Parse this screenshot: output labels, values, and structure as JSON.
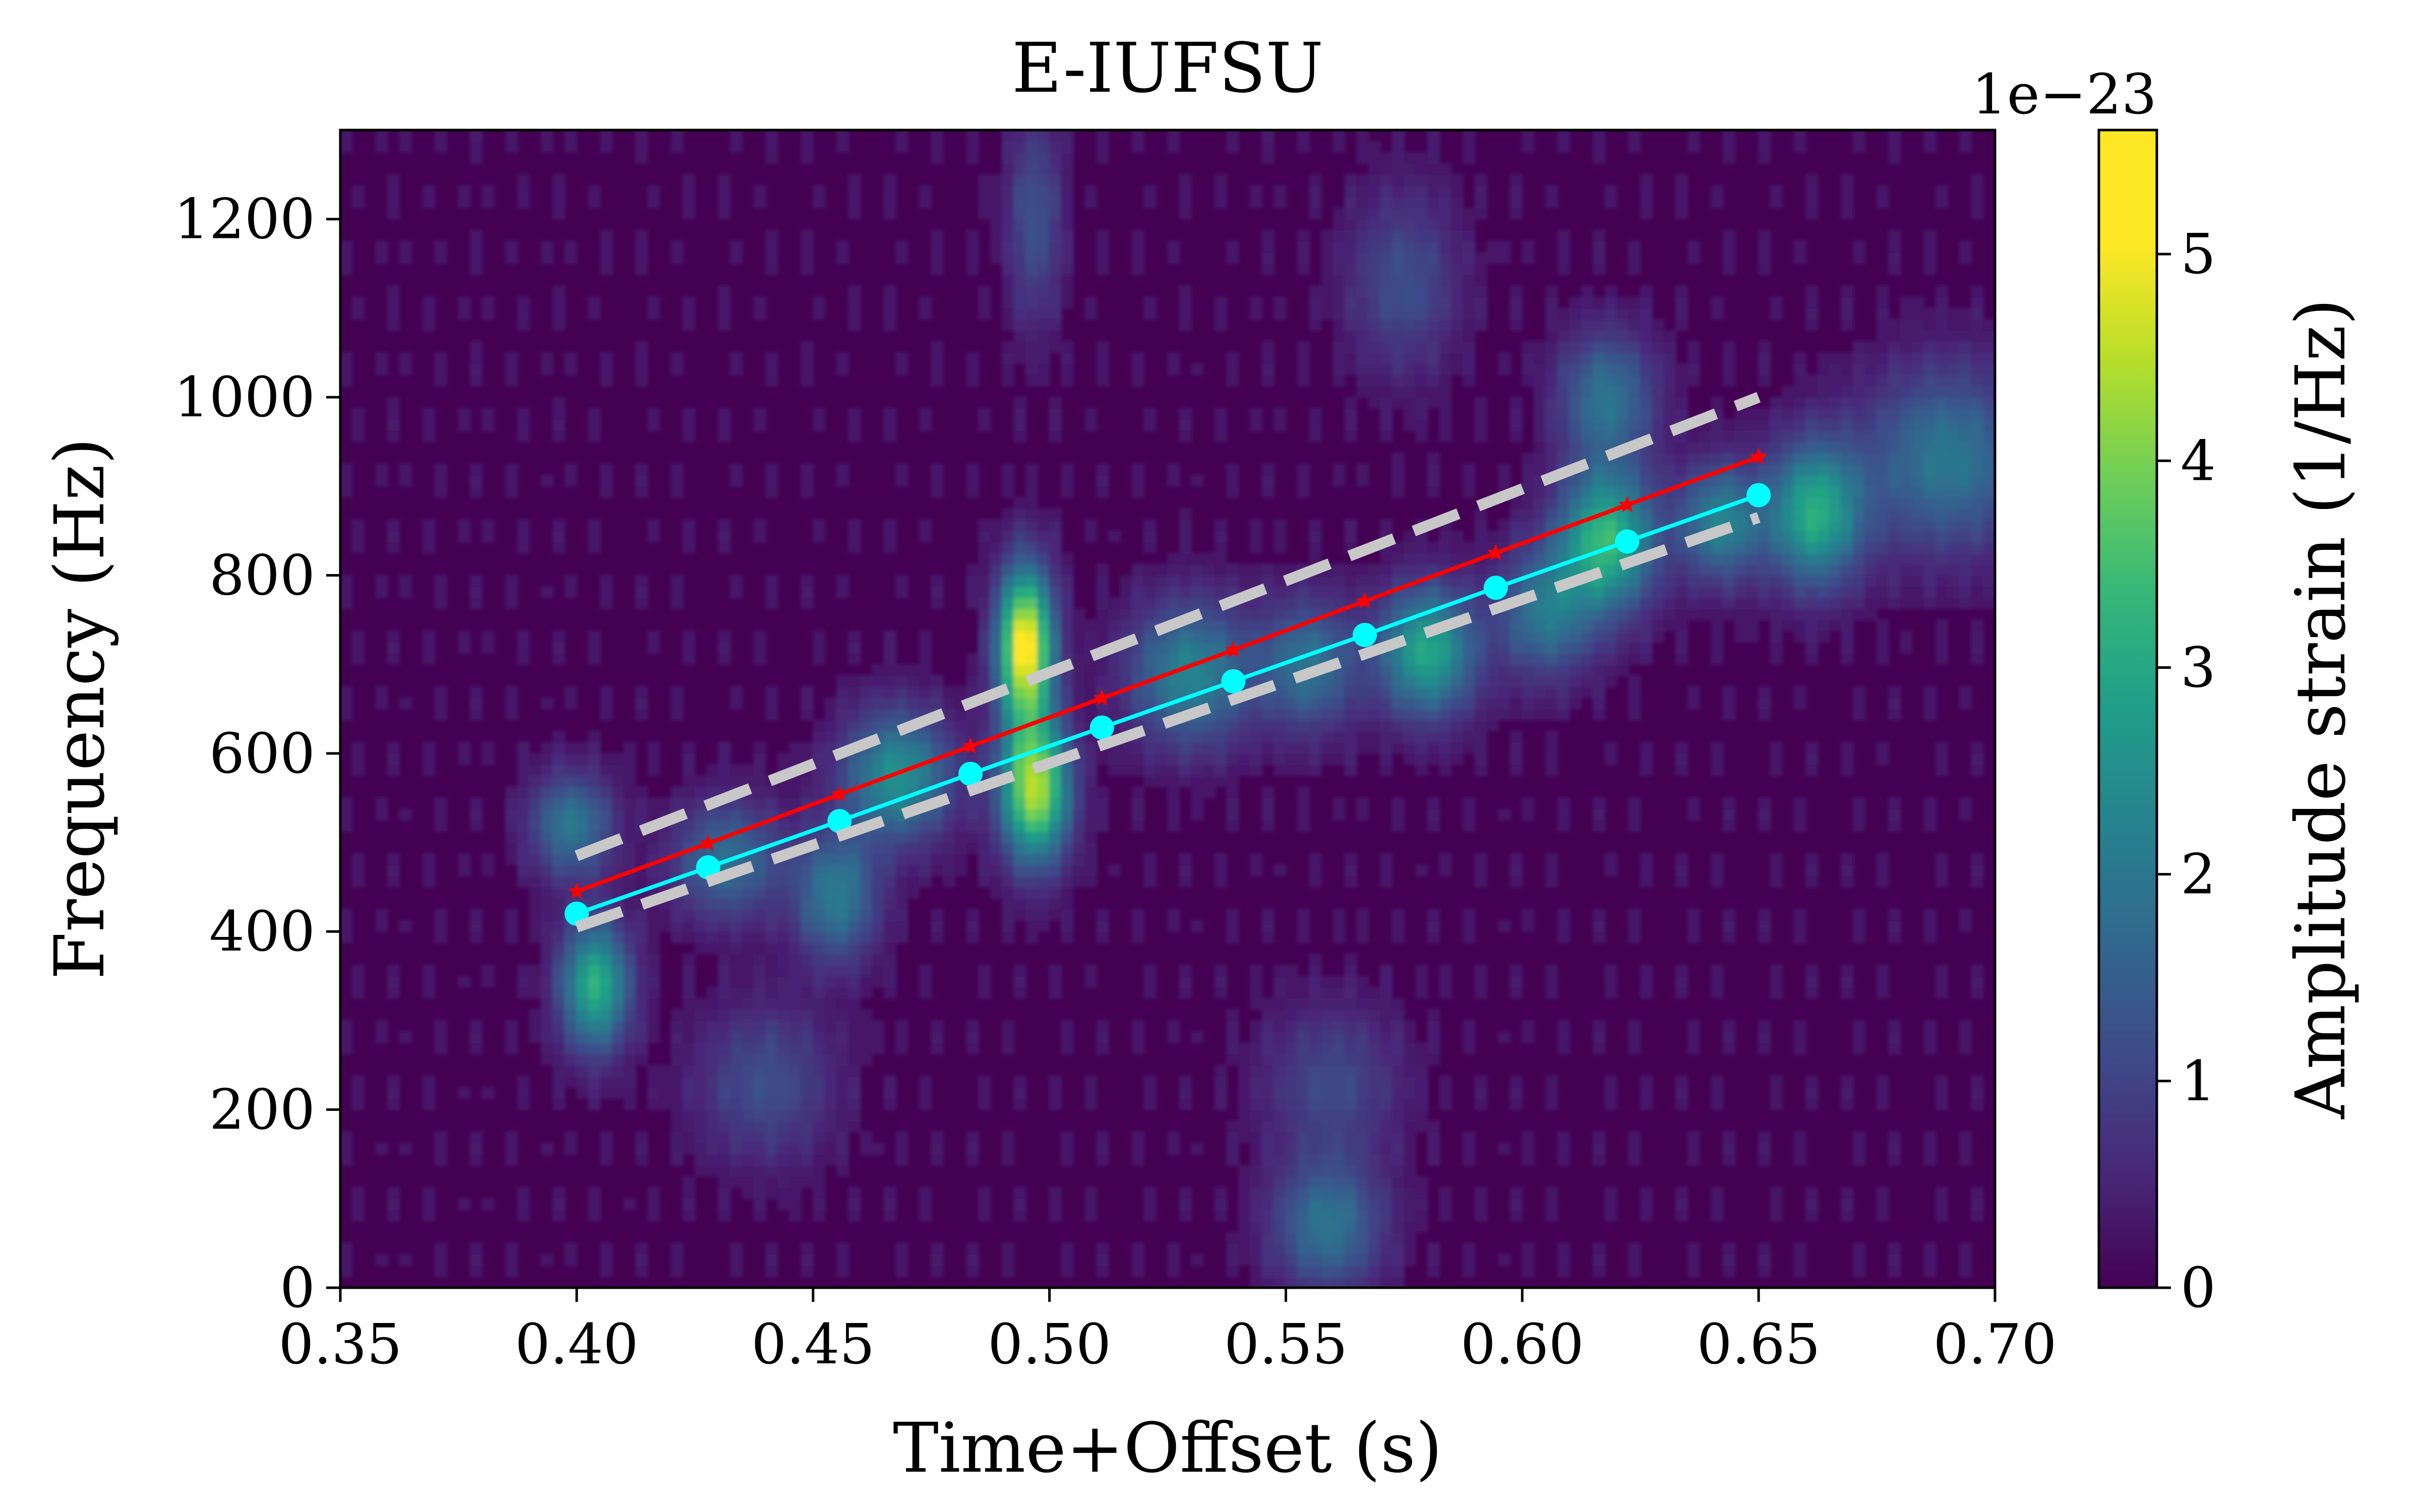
{
  "chart_data": {
    "type": "heatmap",
    "title": "E-IUFSU",
    "xlabel": "Time+Offset (s)",
    "ylabel": "Frequency (Hz)",
    "xlim": [
      0.35,
      0.7
    ],
    "ylim": [
      0,
      1300
    ],
    "xticks": [
      "0.35",
      "0.40",
      "0.45",
      "0.50",
      "0.55",
      "0.60",
      "0.65",
      "0.70"
    ],
    "yticks": [
      "0",
      "200",
      "400",
      "600",
      "800",
      "1000",
      "1200"
    ],
    "colormap": "viridis",
    "colorbar": {
      "label": "Amplitude strain (1/Hz)",
      "exponent_label": "1e−23",
      "range": [
        0,
        5.6
      ],
      "ticks": [
        "0",
        "1",
        "2",
        "3",
        "4",
        "5"
      ]
    },
    "hotspots": [
      {
        "x": 0.495,
        "y": 720,
        "amp": 5.6,
        "sx": 0.004,
        "sy": 60
      },
      {
        "x": 0.497,
        "y": 560,
        "amp": 4.7,
        "sx": 0.005,
        "sy": 55
      },
      {
        "x": 0.404,
        "y": 340,
        "amp": 3.3,
        "sx": 0.005,
        "sy": 50
      },
      {
        "x": 0.399,
        "y": 520,
        "amp": 2.0,
        "sx": 0.006,
        "sy": 40
      },
      {
        "x": 0.432,
        "y": 480,
        "amp": 1.8,
        "sx": 0.008,
        "sy": 45
      },
      {
        "x": 0.468,
        "y": 575,
        "amp": 2.6,
        "sx": 0.008,
        "sy": 50
      },
      {
        "x": 0.455,
        "y": 440,
        "amp": 2.1,
        "sx": 0.006,
        "sy": 50
      },
      {
        "x": 0.53,
        "y": 690,
        "amp": 2.3,
        "sx": 0.009,
        "sy": 55
      },
      {
        "x": 0.555,
        "y": 700,
        "amp": 1.9,
        "sx": 0.007,
        "sy": 50
      },
      {
        "x": 0.58,
        "y": 715,
        "amp": 3.1,
        "sx": 0.007,
        "sy": 50
      },
      {
        "x": 0.618,
        "y": 840,
        "amp": 3.5,
        "sx": 0.007,
        "sy": 55
      },
      {
        "x": 0.605,
        "y": 760,
        "amp": 2.0,
        "sx": 0.007,
        "sy": 50
      },
      {
        "x": 0.642,
        "y": 860,
        "amp": 2.3,
        "sx": 0.006,
        "sy": 45
      },
      {
        "x": 0.662,
        "y": 870,
        "amp": 3.2,
        "sx": 0.007,
        "sy": 55
      },
      {
        "x": 0.69,
        "y": 930,
        "amp": 2.0,
        "sx": 0.012,
        "sy": 70
      },
      {
        "x": 0.618,
        "y": 1000,
        "amp": 1.9,
        "sx": 0.007,
        "sy": 50
      },
      {
        "x": 0.497,
        "y": 1200,
        "amp": 1.2,
        "sx": 0.004,
        "sy": 80
      },
      {
        "x": 0.559,
        "y": 70,
        "amp": 1.9,
        "sx": 0.008,
        "sy": 50
      },
      {
        "x": 0.44,
        "y": 230,
        "amp": 1.1,
        "sx": 0.01,
        "sy": 60
      },
      {
        "x": 0.56,
        "y": 230,
        "amp": 1.0,
        "sx": 0.01,
        "sy": 60
      },
      {
        "x": 0.575,
        "y": 1130,
        "amp": 1.1,
        "sx": 0.008,
        "sy": 70
      }
    ],
    "series": [
      {
        "color": "#ff0000",
        "marker": "star",
        "linestyle": "solid",
        "x": [
          0.4,
          0.4278,
          0.4556,
          0.4833,
          0.5111,
          0.5389,
          0.5667,
          0.5944,
          0.6222,
          0.65
        ],
        "y": [
          445,
          499,
          554,
          608,
          662,
          716,
          771,
          825,
          879,
          933
        ]
      },
      {
        "color": "#00ffff",
        "marker": "circle",
        "linestyle": "solid",
        "x": [
          0.4,
          0.4278,
          0.4556,
          0.4833,
          0.5111,
          0.5389,
          0.5667,
          0.5944,
          0.6222,
          0.65
        ],
        "y": [
          420,
          472,
          524,
          577,
          629,
          681,
          733,
          786,
          838,
          890
        ]
      },
      {
        "color": "#c8c8c8",
        "marker": "none",
        "linestyle": "dashed",
        "x": [
          0.4,
          0.65
        ],
        "y": [
          485,
          1000
        ]
      },
      {
        "color": "#c8c8c8",
        "marker": "none",
        "linestyle": "dashed",
        "x": [
          0.4,
          0.65
        ],
        "y": [
          405,
          865
        ]
      }
    ],
    "grid": false
  }
}
